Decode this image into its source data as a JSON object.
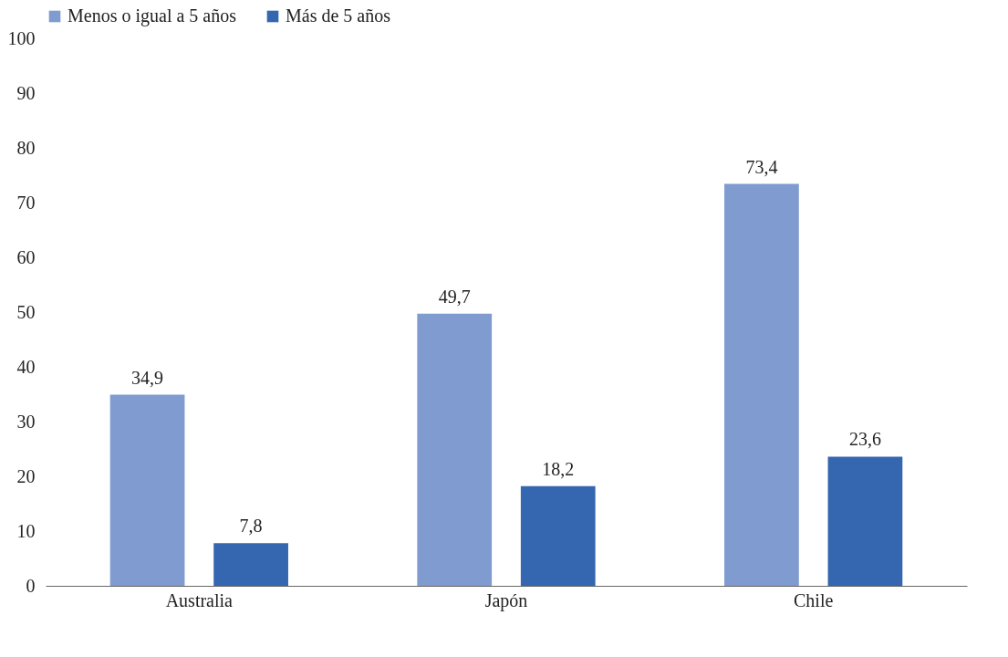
{
  "chart_data": {
    "type": "bar",
    "categories": [
      "Australia",
      "Japón",
      "Chile"
    ],
    "series": [
      {
        "name": "Menos o igual a 5 años",
        "color": "#7f9bd0",
        "values": [
          34.9,
          49.7,
          73.4
        ],
        "value_labels": [
          "34,9",
          "49,7",
          "73,4"
        ]
      },
      {
        "name": "Más de 5 años",
        "color": "#3566b0",
        "values": [
          7.8,
          18.2,
          23.6
        ],
        "value_labels": [
          "7,8",
          "18,2",
          "23,6"
        ]
      }
    ],
    "ylim": [
      0,
      100
    ],
    "yticks": [
      0,
      10,
      20,
      30,
      40,
      50,
      60,
      70,
      80,
      90,
      100
    ],
    "legend": "top"
  }
}
